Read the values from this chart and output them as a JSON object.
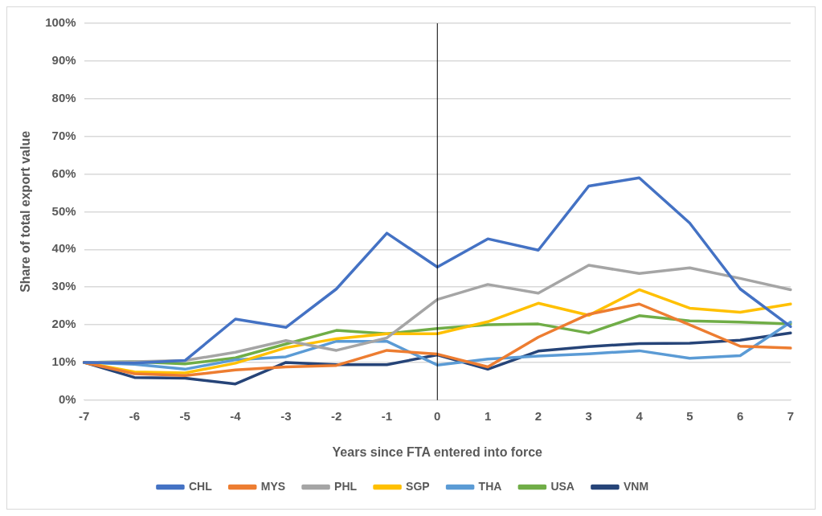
{
  "chart_data": {
    "type": "line",
    "xlabel": "Years since FTA entered into force",
    "ylabel": "Share of total export value",
    "categories": [
      "-7",
      "-6",
      "-5",
      "-4",
      "-3",
      "-2",
      "-1",
      "0",
      "1",
      "2",
      "3",
      "4",
      "5",
      "6",
      "7"
    ],
    "ylim": [
      0,
      100
    ],
    "yticks": [
      {
        "value": 0,
        "label": "0%"
      },
      {
        "value": 10,
        "label": "10%"
      },
      {
        "value": 20,
        "label": "20%"
      },
      {
        "value": 30,
        "label": "30%"
      },
      {
        "value": 40,
        "label": "40%"
      },
      {
        "value": 50,
        "label": "50%"
      },
      {
        "value": 60,
        "label": "60%"
      },
      {
        "value": 70,
        "label": "70%"
      },
      {
        "value": 80,
        "label": "80%"
      },
      {
        "value": 90,
        "label": "90%"
      },
      {
        "value": 100,
        "label": "100%"
      }
    ],
    "grid": "y",
    "legend": "bottom",
    "marker": "none",
    "line_style": "solid",
    "ref_lines": [
      {
        "axis": "x",
        "value": "0",
        "color": "#000000"
      }
    ],
    "series": [
      {
        "name": "CHL",
        "color": "#4472c4",
        "values": [
          10,
          9.8,
          10.5,
          21.5,
          19.3,
          29.5,
          44.3,
          35.3,
          42.8,
          39.8,
          56.8,
          59,
          47,
          29.5,
          19.5
        ]
      },
      {
        "name": "MYS",
        "color": "#ed7d31",
        "values": [
          10,
          7,
          6.5,
          8,
          8.8,
          9.2,
          13.2,
          12.2,
          8.8,
          16.7,
          22.8,
          25.5,
          20,
          14.3,
          13.8
        ]
      },
      {
        "name": "PHL",
        "color": "#a5a5a5",
        "values": [
          10,
          10.2,
          10.5,
          12.7,
          15.8,
          13.2,
          16.5,
          26.7,
          30.7,
          28.4,
          35.8,
          33.6,
          35.1,
          32.3,
          29.3
        ]
      },
      {
        "name": "SGP",
        "color": "#ffc000",
        "values": [
          10,
          7.5,
          7.2,
          9.8,
          13.9,
          16.3,
          17.6,
          17.6,
          20.8,
          25.7,
          22.5,
          29.3,
          24.4,
          23.3,
          25.5
        ]
      },
      {
        "name": "THA",
        "color": "#5b9bd5",
        "values": [
          10,
          9.5,
          8.2,
          10.7,
          11.5,
          15.6,
          15.6,
          9.3,
          10.9,
          11.7,
          12.3,
          13.1,
          11.1,
          11.8,
          20.7
        ]
      },
      {
        "name": "USA",
        "color": "#70ad47",
        "values": [
          10,
          10.2,
          9.6,
          11.2,
          14.9,
          18.5,
          17.6,
          19,
          20,
          20.2,
          17.8,
          22.4,
          21,
          20.7,
          20.2
        ]
      },
      {
        "name": "VNM",
        "color": "#264478",
        "values": [
          10,
          6,
          5.8,
          4.3,
          10,
          9.4,
          9.4,
          12,
          8.2,
          13,
          14.2,
          15,
          15.1,
          15.9,
          17.8
        ]
      }
    ]
  }
}
